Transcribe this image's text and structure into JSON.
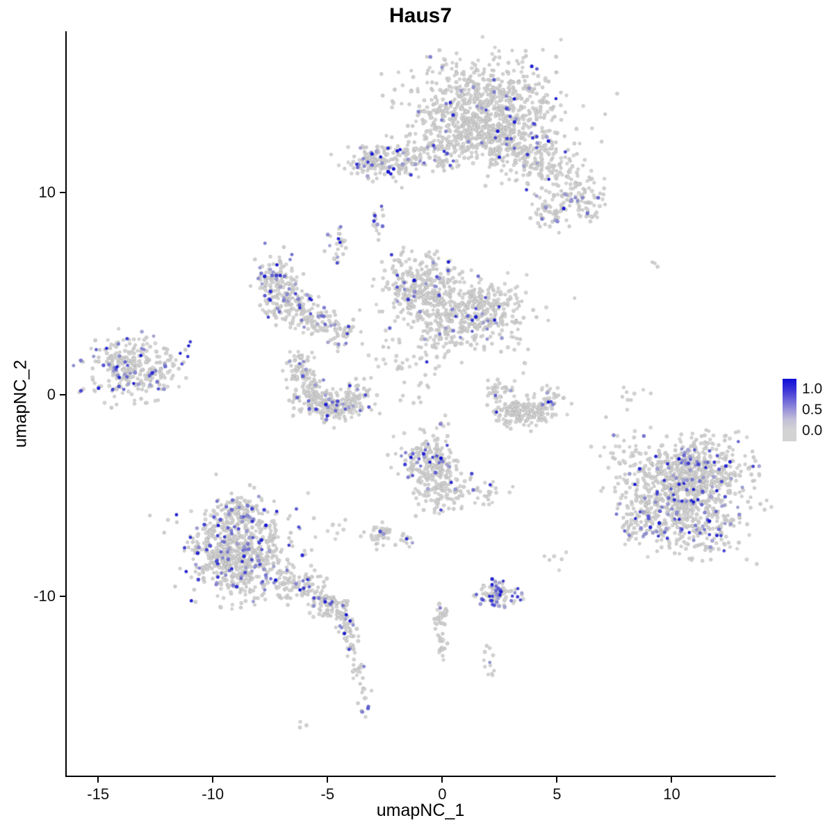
{
  "chart_data": {
    "type": "scatter",
    "title": "Haus7",
    "xlabel": "umapNC_1",
    "ylabel": "umapNC_2",
    "xlim": [
      -16.4,
      14.5
    ],
    "ylim": [
      -18.9,
      18.0
    ],
    "x_ticks": [
      -15,
      -10,
      -5,
      0,
      5,
      10
    ],
    "y_ticks": [
      10,
      0,
      -10
    ],
    "grid": false,
    "legend": {
      "position": "right",
      "labels": [
        "1.0",
        "0.5",
        "0.0"
      ],
      "low_color": "#d3d3d3",
      "high_color": "#0d0dd6"
    },
    "point_color_low": "#d3d3d3",
    "point_color_high": "#0d0dd6",
    "point_radius": 2.4,
    "clusters": [
      {
        "x": 1.8,
        "y": 14.1,
        "sx": 1.5,
        "sy": 1.2,
        "n": 800,
        "f": 0.04
      },
      {
        "x": 2.3,
        "y": 12.5,
        "sx": 0.9,
        "sy": 0.6,
        "n": 150,
        "f": 0.05
      },
      {
        "x": 0.3,
        "y": 12.5,
        "sx": 0.6,
        "sy": 0.5,
        "n": 60,
        "f": 0.05
      },
      {
        "x": 4.0,
        "y": 12.0,
        "sx": 0.8,
        "sy": 0.7,
        "n": 130,
        "f": 0.06
      },
      {
        "x": 5.2,
        "y": 10.4,
        "sx": 0.8,
        "sy": 0.7,
        "n": 110,
        "f": 0.07
      },
      {
        "x": 6.2,
        "y": 9.3,
        "sx": 0.5,
        "sy": 0.5,
        "n": 50,
        "f": 0.08
      },
      {
        "x": 4.7,
        "y": 8.9,
        "sx": 0.4,
        "sy": 0.35,
        "n": 40,
        "f": 0.1
      },
      {
        "x": -1.8,
        "y": 11.7,
        "sx": 1.2,
        "sy": 0.45,
        "n": 170,
        "f": 0.12
      },
      {
        "x": -3.0,
        "y": 11.5,
        "sx": 0.4,
        "sy": 0.4,
        "n": 60,
        "f": 0.28
      },
      {
        "x": -2.8,
        "y": 8.7,
        "sx": 0.15,
        "sy": 0.35,
        "n": 14,
        "f": 0.25
      },
      {
        "x": -4.5,
        "y": 7.3,
        "sx": 0.25,
        "sy": 0.45,
        "n": 26,
        "f": 0.15
      },
      {
        "x": -7.2,
        "y": 5.5,
        "sx": 0.45,
        "sy": 0.7,
        "n": 140,
        "f": 0.18
      },
      {
        "x": -6.4,
        "y": 4.3,
        "sx": 0.5,
        "sy": 0.5,
        "n": 90,
        "f": 0.12
      },
      {
        "x": -5.3,
        "y": 3.6,
        "sx": 0.5,
        "sy": 0.4,
        "n": 60,
        "f": 0.1
      },
      {
        "x": -4.4,
        "y": 3.1,
        "sx": 0.4,
        "sy": 0.4,
        "n": 40,
        "f": 0.08
      },
      {
        "x": -0.9,
        "y": 5.2,
        "sx": 0.85,
        "sy": 0.85,
        "n": 330,
        "f": 0.06
      },
      {
        "x": 1.5,
        "y": 4.2,
        "sx": 1.1,
        "sy": 0.75,
        "n": 330,
        "f": 0.05
      },
      {
        "x": 0.2,
        "y": 2.9,
        "sx": 0.7,
        "sy": 0.5,
        "n": 80,
        "f": 0.06
      },
      {
        "x": -1.9,
        "y": 1.9,
        "sx": 0.8,
        "sy": 0.8,
        "n": 30,
        "f": 0.05
      },
      {
        "x": -6.2,
        "y": 1.2,
        "sx": 0.35,
        "sy": 0.45,
        "n": 70,
        "f": 0.08
      },
      {
        "x": -5.7,
        "y": 0.0,
        "sx": 0.4,
        "sy": 0.45,
        "n": 110,
        "f": 0.08
      },
      {
        "x": -4.7,
        "y": -0.6,
        "sx": 0.45,
        "sy": 0.35,
        "n": 110,
        "f": 0.08
      },
      {
        "x": -3.7,
        "y": 0.0,
        "sx": 0.35,
        "sy": 0.4,
        "n": 60,
        "f": 0.08
      },
      {
        "x": -13.5,
        "y": 1.3,
        "sx": 0.9,
        "sy": 0.75,
        "n": 290,
        "f": 0.16
      },
      {
        "x": -11.6,
        "y": 1.7,
        "sx": 0.4,
        "sy": 0.5,
        "n": 20,
        "f": 0.2
      },
      {
        "x": 2.5,
        "y": 0.0,
        "sx": 0.3,
        "sy": 0.35,
        "n": 35,
        "f": 0.03
      },
      {
        "x": 3.1,
        "y": -0.9,
        "sx": 0.4,
        "sy": 0.3,
        "n": 80,
        "f": 0.02
      },
      {
        "x": 4.0,
        "y": -0.9,
        "sx": 0.4,
        "sy": 0.3,
        "n": 80,
        "f": 0.02
      },
      {
        "x": 4.7,
        "y": -0.2,
        "sx": 0.25,
        "sy": 0.35,
        "n": 40,
        "f": 0.06
      },
      {
        "x": 8.1,
        "y": -0.3,
        "sx": 0.4,
        "sy": 0.6,
        "n": 10,
        "f": 0
      },
      {
        "x": 9.4,
        "y": 6.6,
        "sx": 0.2,
        "sy": 0.2,
        "n": 3,
        "f": 0
      },
      {
        "x": 7.6,
        "y": -2.7,
        "sx": 0.5,
        "sy": 0.5,
        "n": 15,
        "f": 0.05
      },
      {
        "x": 9.9,
        "y": -4.3,
        "sx": 1.1,
        "sy": 1.0,
        "n": 420,
        "f": 0.1
      },
      {
        "x": 11.5,
        "y": -4.0,
        "sx": 1.0,
        "sy": 0.9,
        "n": 350,
        "f": 0.1
      },
      {
        "x": 10.8,
        "y": -6.4,
        "sx": 1.1,
        "sy": 0.8,
        "n": 260,
        "f": 0.12
      },
      {
        "x": 8.8,
        "y": -6.2,
        "sx": 0.6,
        "sy": 0.7,
        "n": 80,
        "f": 0.16
      },
      {
        "x": -0.6,
        "y": -3.2,
        "sx": 0.6,
        "sy": 0.6,
        "n": 150,
        "f": 0.15
      },
      {
        "x": -0.2,
        "y": -4.5,
        "sx": 0.6,
        "sy": 0.7,
        "n": 120,
        "f": 0.08
      },
      {
        "x": 1.6,
        "y": -4.8,
        "sx": 0.8,
        "sy": 0.4,
        "n": 40,
        "f": 0.12
      },
      {
        "x": -2.7,
        "y": -7.0,
        "sx": 0.35,
        "sy": 0.25,
        "n": 40,
        "f": 0.08
      },
      {
        "x": -1.5,
        "y": -7.2,
        "sx": 0.2,
        "sy": 0.15,
        "n": 12,
        "f": 0.05
      },
      {
        "x": -8.9,
        "y": -8.0,
        "sx": 1.1,
        "sy": 1.1,
        "n": 650,
        "f": 0.13
      },
      {
        "x": -8.8,
        "y": -5.9,
        "sx": 0.7,
        "sy": 0.5,
        "n": 130,
        "f": 0.15
      },
      {
        "x": -6.4,
        "y": -9.4,
        "sx": 0.6,
        "sy": 0.4,
        "n": 80,
        "f": 0.1
      },
      {
        "x": -5.1,
        "y": -10.3,
        "sx": 0.4,
        "sy": 0.4,
        "n": 80,
        "f": 0.12
      },
      {
        "x": -4.3,
        "y": -11.0,
        "sx": 0.3,
        "sy": 0.4,
        "n": 50,
        "f": 0.1
      },
      {
        "x": -4.0,
        "y": -12.2,
        "sx": 0.15,
        "sy": 0.5,
        "n": 22,
        "f": 0.08
      },
      {
        "x": -3.7,
        "y": -13.6,
        "sx": 0.15,
        "sy": 0.4,
        "n": 16,
        "f": 0.1
      },
      {
        "x": -3.4,
        "y": -14.9,
        "sx": 0.15,
        "sy": 0.4,
        "n": 14,
        "f": 0.2
      },
      {
        "x": -6.1,
        "y": -16.4,
        "sx": 0.15,
        "sy": 0.15,
        "n": 3,
        "f": 0
      },
      {
        "x": -4.3,
        "y": -6.7,
        "sx": 0.4,
        "sy": 0.4,
        "n": 8,
        "f": 0
      },
      {
        "x": 2.4,
        "y": -9.9,
        "sx": 0.45,
        "sy": 0.28,
        "n": 90,
        "f": 0.45
      },
      {
        "x": -0.1,
        "y": -11.0,
        "sx": 0.15,
        "sy": 0.45,
        "n": 25,
        "f": 0.1
      },
      {
        "x": 0.0,
        "y": -12.2,
        "sx": 0.12,
        "sy": 0.35,
        "n": 18,
        "f": 0.25
      },
      {
        "x": 2.0,
        "y": -12.9,
        "sx": 0.2,
        "sy": 0.3,
        "n": 8,
        "f": 0.15
      },
      {
        "x": 2.2,
        "y": -13.8,
        "sx": 0.15,
        "sy": 0.15,
        "n": 4,
        "f": 0
      },
      {
        "x": 5.0,
        "y": -8.0,
        "sx": 0.3,
        "sy": 0.3,
        "n": 6,
        "f": 0
      },
      {
        "x": -1.0,
        "y": 0.8,
        "sx": 0.5,
        "sy": 0.8,
        "n": 15,
        "f": 0.05
      },
      {
        "x": -0.5,
        "y": -1.5,
        "sx": 0.4,
        "sy": 0.7,
        "n": 12,
        "f": 0
      },
      {
        "x": 3.4,
        "y": 1.5,
        "sx": 0.4,
        "sy": 0.8,
        "n": 10,
        "f": 0
      }
    ]
  }
}
